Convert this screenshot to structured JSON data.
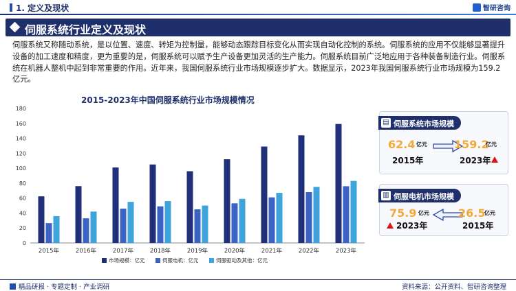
{
  "header": {
    "section_label": "1. 定义及现状",
    "brand": "智研咨询",
    "banner_title": "伺服系统行业定义及现状"
  },
  "intro": "伺服系统又称随动系统，是以位置、速度、转矩为控制量，能够动态跟踪目标变化从而实现自动化控制的系统。伺服系统的应用不仅能够显著提升设备的加工速度和精度，更为重要的是，伺服系统可以赋予生产设备更加灵活的生产能力。伺服系统目前广泛地应用于各种装备制造行业。伺服系统在机器人整机中起到非常重要的作用。近年来，我国伺服系统行业市场规模逐步扩大。数据显示，2023年我国伺服系统行业市场规模为159.2亿元。",
  "colors": {
    "series1": "#1f2f7a",
    "series2": "#3b63c4",
    "series3": "#3fa3dc",
    "accent": "#f4a93b",
    "up": "#dd1111"
  },
  "chart_data": {
    "type": "bar",
    "title": "2015-2023年中国伺服系统行业市场规模情况",
    "categories": [
      "2015年",
      "2016年",
      "2017年",
      "2018年",
      "2019年",
      "2020年",
      "2021年",
      "2022年",
      "2023年"
    ],
    "series": [
      {
        "name": "市场规模：亿元",
        "values": [
          62.4,
          76,
          101,
          105,
          96,
          112,
          129,
          144,
          159.2
        ]
      },
      {
        "name": "伺服电机：亿元",
        "values": [
          26.5,
          33,
          46,
          49,
          45,
          53,
          61,
          68,
          75.9
        ]
      },
      {
        "name": "伺服驱动及其他：亿元",
        "values": [
          35.9,
          42,
          55,
          56,
          50,
          59,
          67,
          75,
          83
        ]
      }
    ],
    "ylim": [
      0,
      180
    ],
    "yticks": [
      0,
      20,
      40,
      60,
      80,
      100,
      120,
      140,
      160,
      180
    ],
    "grid": false,
    "legend": "bottom"
  },
  "cards": {
    "system": {
      "title": "伺服系统市场规模",
      "left_value": "62.4",
      "left_unit": "亿元",
      "left_year": "2015年",
      "right_value": "159.2",
      "right_unit": "亿元",
      "right_year": "2023年"
    },
    "motor": {
      "title": "伺服电机市场规模",
      "left_value": "75.9",
      "left_unit": "亿元",
      "left_year": "2023年",
      "right_value": "26.5",
      "right_unit": "亿元",
      "right_year": "2015年"
    }
  },
  "footer": {
    "left": "精品研报 · 专题定制 · 产业调研",
    "right": "资料来源：公开资料、智研咨询整理"
  }
}
